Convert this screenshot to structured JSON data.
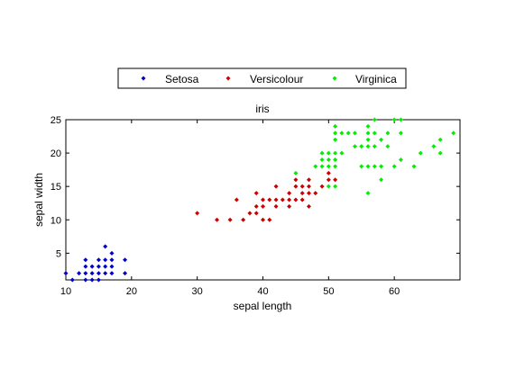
{
  "chart_data": {
    "type": "scatter",
    "title": "iris",
    "xlabel": "sepal length",
    "ylabel": "sepal width",
    "xlim": [
      10,
      70
    ],
    "ylim": [
      1,
      25
    ],
    "xticks": [
      10,
      20,
      30,
      40,
      50,
      60
    ],
    "yticks": [
      5,
      10,
      15,
      20,
      25
    ],
    "grid": false,
    "legend_position": "top-outside",
    "series": [
      {
        "name": "Setosa",
        "color": "#0000cc",
        "marker": "diamond",
        "points": [
          [
            10,
            2
          ],
          [
            11,
            1
          ],
          [
            12,
            2
          ],
          [
            13,
            1
          ],
          [
            13,
            2
          ],
          [
            13,
            3
          ],
          [
            13,
            4
          ],
          [
            14,
            1
          ],
          [
            14,
            2
          ],
          [
            14,
            3
          ],
          [
            15,
            1
          ],
          [
            15,
            2
          ],
          [
            15,
            3
          ],
          [
            15,
            4
          ],
          [
            16,
            2
          ],
          [
            16,
            3
          ],
          [
            16,
            4
          ],
          [
            16,
            6
          ],
          [
            17,
            2
          ],
          [
            17,
            3
          ],
          [
            17,
            4
          ],
          [
            17,
            5
          ],
          [
            19,
            2
          ],
          [
            19,
            4
          ]
        ]
      },
      {
        "name": "Versicolour",
        "color": "#cc0000",
        "marker": "diamond",
        "points": [
          [
            30,
            11
          ],
          [
            33,
            10
          ],
          [
            35,
            10
          ],
          [
            36,
            13
          ],
          [
            37,
            10
          ],
          [
            38,
            11
          ],
          [
            39,
            11
          ],
          [
            39,
            12
          ],
          [
            39,
            14
          ],
          [
            40,
            10
          ],
          [
            40,
            12
          ],
          [
            40,
            13
          ],
          [
            41,
            10
          ],
          [
            41,
            13
          ],
          [
            42,
            12
          ],
          [
            42,
            13
          ],
          [
            42,
            15
          ],
          [
            43,
            13
          ],
          [
            44,
            12
          ],
          [
            44,
            13
          ],
          [
            44,
            14
          ],
          [
            45,
            13
          ],
          [
            45,
            15
          ],
          [
            45,
            16
          ],
          [
            46,
            13
          ],
          [
            46,
            14
          ],
          [
            46,
            15
          ],
          [
            47,
            12
          ],
          [
            47,
            14
          ],
          [
            47,
            15
          ],
          [
            47,
            16
          ],
          [
            48,
            14
          ],
          [
            49,
            15
          ],
          [
            50,
            16
          ],
          [
            50,
            17
          ],
          [
            51,
            16
          ]
        ]
      },
      {
        "name": "Virginica",
        "color": "#00ee00",
        "marker": "diamond",
        "points": [
          [
            45,
            17
          ],
          [
            48,
            18
          ],
          [
            49,
            18
          ],
          [
            49,
            19
          ],
          [
            49,
            20
          ],
          [
            50,
            15
          ],
          [
            50,
            18
          ],
          [
            50,
            19
          ],
          [
            50,
            20
          ],
          [
            51,
            15
          ],
          [
            51,
            18
          ],
          [
            51,
            19
          ],
          [
            51,
            20
          ],
          [
            51,
            22
          ],
          [
            51,
            23
          ],
          [
            51,
            24
          ],
          [
            52,
            20
          ],
          [
            52,
            23
          ],
          [
            53,
            23
          ],
          [
            54,
            21
          ],
          [
            54,
            23
          ],
          [
            55,
            18
          ],
          [
            55,
            21
          ],
          [
            56,
            14
          ],
          [
            56,
            18
          ],
          [
            56,
            21
          ],
          [
            56,
            22
          ],
          [
            56,
            23
          ],
          [
            56,
            24
          ],
          [
            57,
            18
          ],
          [
            57,
            21
          ],
          [
            57,
            23
          ],
          [
            57,
            25
          ],
          [
            58,
            16
          ],
          [
            58,
            18
          ],
          [
            58,
            22
          ],
          [
            59,
            21
          ],
          [
            59,
            23
          ],
          [
            60,
            18
          ],
          [
            60,
            25
          ],
          [
            61,
            19
          ],
          [
            61,
            23
          ],
          [
            61,
            25
          ],
          [
            63,
            18
          ],
          [
            64,
            20
          ],
          [
            66,
            21
          ],
          [
            67,
            20
          ],
          [
            67,
            22
          ],
          [
            69,
            23
          ]
        ]
      }
    ]
  }
}
